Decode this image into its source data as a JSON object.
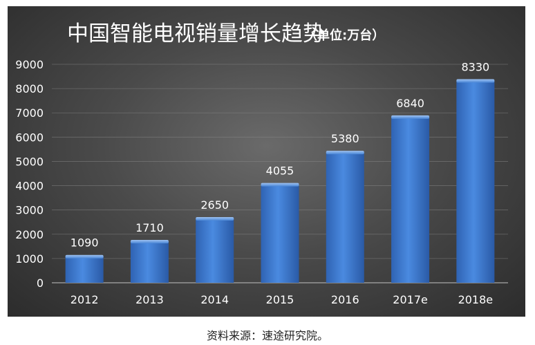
{
  "chart_data": {
    "type": "bar",
    "title": "中国智能电视销量增长趋势",
    "subtitle": "（单位:万台）",
    "categories": [
      "2012",
      "2013",
      "2014",
      "2015",
      "2016",
      "2017e",
      "2018e"
    ],
    "values": [
      1090,
      1710,
      2650,
      4055,
      5380,
      6840,
      8330
    ],
    "ylim": [
      0,
      9000
    ],
    "yticks": [
      0,
      1000,
      2000,
      3000,
      4000,
      5000,
      6000,
      7000,
      8000,
      9000
    ],
    "grid": true,
    "legend": "none",
    "bar_color": "#3c78cf",
    "background_color": "#4a4a4a",
    "text_color": "#ffffff"
  },
  "source": "资料来源：速途研究院。"
}
